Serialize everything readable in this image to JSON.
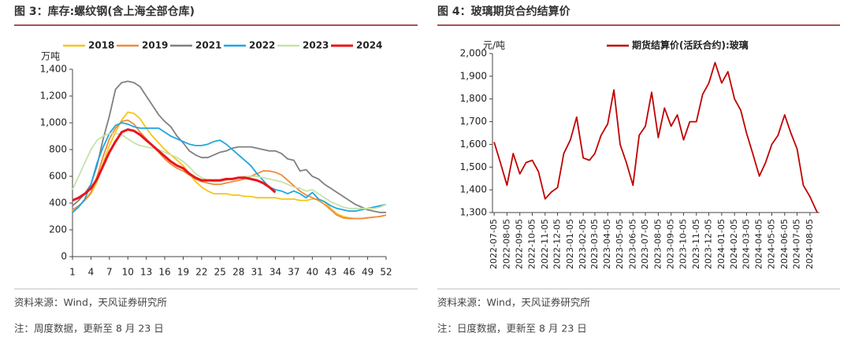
{
  "chart_data": [
    {
      "type": "line",
      "title": "图 3：库存:螺纹钢(含上海全部仓库)",
      "y_label": "万吨",
      "x": [
        1,
        2,
        3,
        4,
        5,
        6,
        7,
        8,
        9,
        10,
        11,
        12,
        13,
        14,
        15,
        16,
        17,
        18,
        19,
        20,
        21,
        22,
        23,
        24,
        25,
        26,
        27,
        28,
        29,
        30,
        31,
        32,
        33,
        34,
        35,
        36,
        37,
        38,
        39,
        40,
        41,
        42,
        43,
        44,
        45,
        46,
        47,
        48,
        49,
        50,
        51,
        52
      ],
      "xlim": [
        1,
        52
      ],
      "xticks": [
        1,
        4,
        7,
        10,
        13,
        16,
        19,
        22,
        25,
        28,
        31,
        34,
        37,
        40,
        43,
        46,
        49,
        52
      ],
      "ylim": [
        0,
        1400
      ],
      "yticks": [
        0,
        200,
        400,
        600,
        800,
        {
          "value": 1000,
          "label": "1,000"
        },
        {
          "value": 1200,
          "label": "1,200"
        },
        {
          "value": 1400,
          "label": "1,400"
        }
      ],
      "series": [
        {
          "name": "2018",
          "color": "#f5c518",
          "values": [
            340,
            380,
            420,
            470,
            560,
            700,
            830,
            930,
            1020,
            1080,
            1070,
            1030,
            960,
            900,
            850,
            800,
            760,
            720,
            680,
            620,
            560,
            520,
            490,
            470,
            470,
            470,
            460,
            460,
            450,
            450,
            440,
            440,
            440,
            440,
            430,
            430,
            430,
            420,
            420,
            430,
            430,
            410,
            360,
            320,
            300,
            290,
            285,
            285,
            290,
            295,
            300,
            310
          ]
        },
        {
          "name": "2019",
          "color": "#f08a3c",
          "values": [
            350,
            380,
            420,
            480,
            600,
            750,
            880,
            960,
            1010,
            1020,
            990,
            930,
            880,
            830,
            780,
            730,
            690,
            660,
            640,
            610,
            580,
            560,
            550,
            540,
            540,
            550,
            560,
            570,
            580,
            600,
            620,
            640,
            640,
            630,
            610,
            570,
            530,
            490,
            460,
            440,
            420,
            390,
            350,
            310,
            290,
            285,
            285,
            285,
            290,
            295,
            300,
            310
          ]
        },
        {
          "name": "2021",
          "color": "#808080",
          "values": [
            380,
            420,
            470,
            540,
            680,
            880,
            1050,
            1250,
            1300,
            1310,
            1300,
            1270,
            1200,
            1130,
            1060,
            1010,
            970,
            900,
            850,
            790,
            760,
            740,
            740,
            760,
            780,
            790,
            810,
            820,
            820,
            820,
            810,
            800,
            790,
            790,
            770,
            730,
            720,
            640,
            650,
            600,
            580,
            540,
            510,
            480,
            450,
            420,
            390,
            370,
            350,
            340,
            330,
            330
          ]
        },
        {
          "name": "2022",
          "color": "#1ea7e0",
          "values": [
            330,
            370,
            430,
            540,
            700,
            820,
            920,
            980,
            1000,
            990,
            970,
            960,
            960,
            960,
            960,
            930,
            900,
            880,
            860,
            840,
            830,
            830,
            840,
            860,
            870,
            840,
            800,
            760,
            720,
            680,
            620,
            570,
            520,
            500,
            490,
            470,
            490,
            470,
            440,
            480,
            430,
            410,
            380,
            360,
            350,
            340,
            340,
            350,
            360,
            370,
            380,
            390
          ]
        },
        {
          "name": "2023",
          "color": "#c5e3a8",
          "values": [
            500,
            600,
            700,
            800,
            870,
            900,
            920,
            920,
            910,
            880,
            850,
            830,
            820,
            810,
            800,
            780,
            760,
            740,
            710,
            670,
            620,
            590,
            570,
            560,
            560,
            570,
            580,
            590,
            600,
            600,
            600,
            590,
            580,
            570,
            560,
            540,
            520,
            510,
            490,
            500,
            470,
            440,
            410,
            390,
            370,
            360,
            360,
            360,
            360,
            360,
            370,
            390
          ]
        },
        {
          "name": "2024",
          "color": "#e8141c",
          "width": 3,
          "values": [
            420,
            440,
            470,
            510,
            580,
            680,
            780,
            860,
            930,
            950,
            940,
            910,
            870,
            830,
            790,
            750,
            710,
            680,
            660,
            620,
            590,
            570,
            570,
            570,
            570,
            580,
            580,
            590,
            590,
            580,
            570,
            550,
            520,
            480,
            null,
            null,
            null,
            null,
            null,
            null,
            null,
            null,
            null,
            null,
            null,
            null,
            null,
            null,
            null,
            null,
            null,
            null
          ]
        }
      ],
      "source": "资料来源：Wind，天风证券研究所",
      "note": "注：周度数据，更新至 8 月 23 日"
    },
    {
      "type": "line",
      "title": "图 4：玻璃期货合约结算价",
      "y_label": "元/吨",
      "x_dates": true,
      "x": [
        "2022-07-05",
        "2022-07-20",
        "2022-08-05",
        "2022-08-20",
        "2022-09-05",
        "2022-09-20",
        "2022-10-05",
        "2022-10-20",
        "2022-11-05",
        "2022-11-20",
        "2022-12-05",
        "2022-12-20",
        "2023-01-05",
        "2023-01-20",
        "2023-02-05",
        "2023-02-20",
        "2023-03-05",
        "2023-03-20",
        "2023-04-05",
        "2023-04-20",
        "2023-05-05",
        "2023-05-20",
        "2023-06-05",
        "2023-06-20",
        "2023-07-05",
        "2023-07-20",
        "2023-08-05",
        "2023-08-20",
        "2023-09-05",
        "2023-09-20",
        "2023-10-05",
        "2023-10-20",
        "2023-11-05",
        "2023-11-20",
        "2023-12-05",
        "2023-12-20",
        "2024-01-05",
        "2024-01-20",
        "2024-02-05",
        "2024-02-20",
        "2024-03-05",
        "2024-03-20",
        "2024-04-05",
        "2024-04-20",
        "2024-05-05",
        "2024-05-20",
        "2024-06-05",
        "2024-06-20",
        "2024-07-05",
        "2024-07-20",
        "2024-08-05",
        "2024-08-20",
        "2024-08-23"
      ],
      "xlim": [
        "2022-07-01",
        "2024-08-28"
      ],
      "xticks": [
        "2022-07-05",
        "2022-08-05",
        "2022-09-05",
        "2022-10-05",
        "2022-11-05",
        "2022-12-05",
        "2023-01-05",
        "2023-02-05",
        "2023-03-05",
        "2023-04-05",
        "2023-05-05",
        "2023-06-05",
        "2023-07-05",
        "2023-08-05",
        "2023-09-05",
        "2023-10-05",
        "2023-11-05",
        "2023-12-05",
        "2024-01-05",
        "2024-02-05",
        "2024-03-05",
        "2024-04-05",
        "2024-05-05",
        "2024-06-05",
        "2024-07-05",
        "2024-08-05"
      ],
      "ylim": [
        1300,
        2000
      ],
      "yticks": [
        {
          "value": 1300,
          "label": "1,300"
        },
        {
          "value": 1400,
          "label": "1,400"
        },
        {
          "value": 1500,
          "label": "1,500"
        },
        {
          "value": 1600,
          "label": "1,600"
        },
        {
          "value": 1700,
          "label": "1,700"
        },
        {
          "value": 1800,
          "label": "1,800"
        },
        {
          "value": 1900,
          "label": "1,900"
        },
        {
          "value": 2000,
          "label": "2,000"
        }
      ],
      "series": [
        {
          "name": "期货结算价(活跃合约):玻璃",
          "color": "#c00000",
          "values": [
            1610,
            1520,
            1420,
            1560,
            1470,
            1520,
            1530,
            1480,
            1360,
            1390,
            1410,
            1560,
            1620,
            1720,
            1540,
            1530,
            1560,
            1640,
            1690,
            1840,
            1600,
            1520,
            1420,
            1640,
            1680,
            1830,
            1630,
            1760,
            1680,
            1730,
            1620,
            1700,
            1700,
            1820,
            1870,
            1960,
            1870,
            1920,
            1800,
            1750,
            1650,
            1560,
            1460,
            1520,
            1600,
            1640,
            1730,
            1650,
            1580,
            1420,
            1370,
            1310,
            1300
          ]
        }
      ],
      "source": "资料来源：Wind，天风证券研究所",
      "note": "注：日度数据，更新至 8 月 23 日"
    }
  ]
}
